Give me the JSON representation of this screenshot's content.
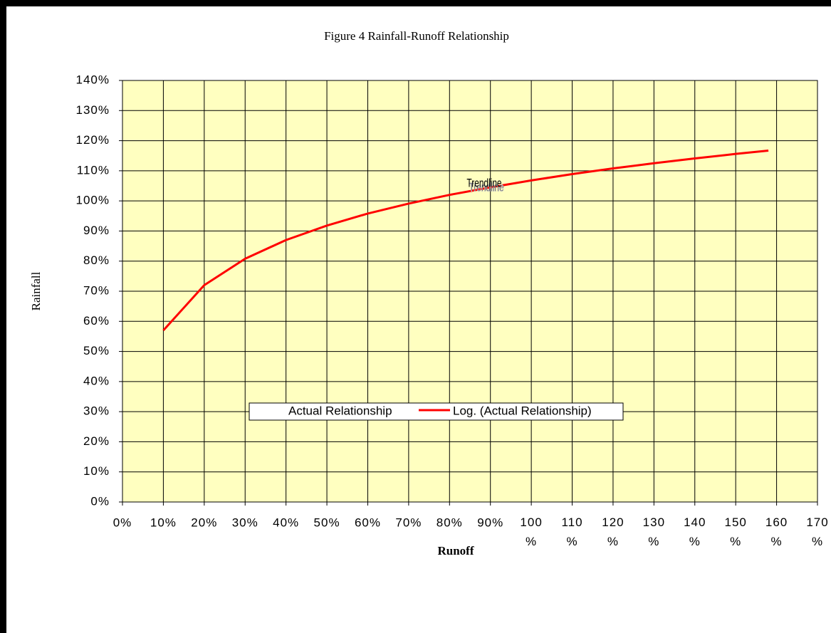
{
  "chart_data": {
    "type": "line",
    "title": "Figure 4 Rainfall-Runoff Relationship",
    "x_label": "Runoff",
    "y_label": "Rainfall",
    "annotation": "Trendline",
    "series": [
      {
        "name": "Actual Relationship",
        "color": "#ffffff",
        "x": [],
        "values": []
      },
      {
        "name": "Log. (Actual Relationship)",
        "color": "#ff0000",
        "x": [
          10,
          20,
          30,
          40,
          50,
          60,
          70,
          80,
          90,
          100,
          110,
          120,
          130,
          140,
          150,
          158
        ],
        "values": [
          57,
          72,
          80.8,
          87,
          91.8,
          95.8,
          99.1,
          102,
          104.5,
          106.8,
          108.9,
          110.8,
          112.5,
          114.1,
          115.6,
          116.7
        ]
      }
    ],
    "xlim": [
      0,
      170
    ],
    "ylim": [
      0,
      140
    ],
    "xticks": [
      {
        "value": 0,
        "label": "0%"
      },
      {
        "value": 10,
        "label": "10%"
      },
      {
        "value": 20,
        "label": "20%"
      },
      {
        "value": 30,
        "label": "30%"
      },
      {
        "value": 40,
        "label": "40%"
      },
      {
        "value": 50,
        "label": "50%"
      },
      {
        "value": 60,
        "label": "60%"
      },
      {
        "value": 70,
        "label": "70%"
      },
      {
        "value": 80,
        "label": "80%"
      },
      {
        "value": 90,
        "label": "90%"
      },
      {
        "value": 100,
        "label": "100%"
      },
      {
        "value": 110,
        "label": "110%"
      },
      {
        "value": 120,
        "label": "120%"
      },
      {
        "value": 130,
        "label": "130%"
      },
      {
        "value": 140,
        "label": "140%"
      },
      {
        "value": 150,
        "label": "150%"
      },
      {
        "value": 160,
        "label": "160%"
      },
      {
        "value": 170,
        "label": "170%"
      }
    ],
    "yticks": [
      {
        "value": 0,
        "label": "0%"
      },
      {
        "value": 10,
        "label": "10%"
      },
      {
        "value": 20,
        "label": "20%"
      },
      {
        "value": 30,
        "label": "30%"
      },
      {
        "value": 40,
        "label": "40%"
      },
      {
        "value": 50,
        "label": "50%"
      },
      {
        "value": 60,
        "label": "60%"
      },
      {
        "value": 70,
        "label": "70%"
      },
      {
        "value": 80,
        "label": "80%"
      },
      {
        "value": 90,
        "label": "90%"
      },
      {
        "value": 100,
        "label": "100%"
      },
      {
        "value": 110,
        "label": "110%"
      },
      {
        "value": 120,
        "label": "120%"
      },
      {
        "value": 130,
        "label": "130%"
      },
      {
        "value": 140,
        "label": "140%"
      }
    ],
    "grid": true,
    "plot_background": "#ffffc0",
    "legend": "bottom-center"
  }
}
